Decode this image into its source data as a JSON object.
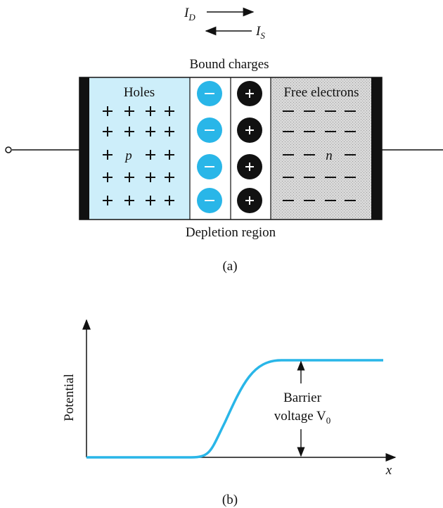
{
  "currents": {
    "forward": {
      "main": "I",
      "sub": "D"
    },
    "reverse": {
      "main": "I",
      "sub": "S"
    }
  },
  "diagram_a": {
    "top_label": "Bound charges",
    "left_region": "Holes",
    "right_region": "Free electrons",
    "p_label": "p",
    "n_label": "n",
    "bottom_label": "Depletion region",
    "caption": "(a)"
  },
  "diagram_b": {
    "y_axis_label": "Potential",
    "x_axis_label": "x",
    "barrier_line1": "Barrier",
    "barrier_line2": {
      "main": "voltage V",
      "sub": "0"
    },
    "caption": "(b)"
  }
}
